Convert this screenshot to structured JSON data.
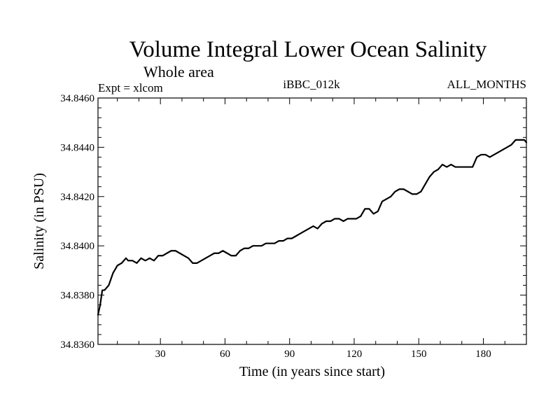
{
  "chart_data": {
    "type": "line",
    "title": "Volume Integral Lower Ocean Salinity",
    "subtitle": "Whole area",
    "annotations": {
      "left": "Expt = xlcom",
      "center": "iBBC_012k",
      "right": "ALL_MONTHS"
    },
    "xlabel": "Time (in years since start)",
    "ylabel": "Salinity (in PSU)",
    "xlim": [
      1,
      200
    ],
    "ylim": [
      34.836,
      34.846
    ],
    "x_ticks": [
      30,
      60,
      90,
      120,
      150,
      180
    ],
    "y_ticks": [
      34.836,
      34.838,
      34.84,
      34.842,
      34.844,
      34.846
    ],
    "y_tick_labels": [
      "34.8360",
      "34.8380",
      "34.8400",
      "34.8420",
      "34.8440",
      "34.8460"
    ],
    "series": [
      {
        "name": "Salinity",
        "color": "#000000",
        "x": [
          1,
          2,
          3,
          4,
          6,
          8,
          10,
          12,
          14,
          15,
          17,
          19,
          21,
          23,
          25,
          27,
          29,
          31,
          33,
          35,
          37,
          39,
          41,
          43,
          45,
          47,
          49,
          51,
          53,
          55,
          57,
          59,
          61,
          63,
          65,
          67,
          69,
          71,
          73,
          75,
          77,
          79,
          81,
          83,
          85,
          87,
          89,
          91,
          93,
          95,
          97,
          99,
          101,
          103,
          105,
          107,
          109,
          111,
          113,
          115,
          117,
          119,
          121,
          123,
          125,
          127,
          129,
          131,
          133,
          135,
          137,
          139,
          141,
          143,
          145,
          147,
          149,
          151,
          153,
          155,
          157,
          159,
          161,
          163,
          165,
          167,
          169,
          171,
          173,
          175,
          177,
          179,
          181,
          183,
          185,
          187,
          189,
          191,
          193,
          195,
          197,
          199,
          200
        ],
        "y": [
          34.8372,
          34.8376,
          34.8382,
          34.8382,
          34.8384,
          34.8389,
          34.8392,
          34.8393,
          34.8395,
          34.8394,
          34.8394,
          34.8393,
          34.8395,
          34.8394,
          34.8395,
          34.8394,
          34.8396,
          34.8396,
          34.8397,
          34.8398,
          34.8398,
          34.8397,
          34.8396,
          34.8395,
          34.8393,
          34.8393,
          34.8394,
          34.8395,
          34.8396,
          34.8397,
          34.8397,
          34.8398,
          34.8397,
          34.8396,
          34.8396,
          34.8398,
          34.8399,
          34.8399,
          34.84,
          34.84,
          34.84,
          34.8401,
          34.8401,
          34.8401,
          34.8402,
          34.8402,
          34.8403,
          34.8403,
          34.8404,
          34.8405,
          34.8406,
          34.8407,
          34.8408,
          34.8407,
          34.8409,
          34.841,
          34.841,
          34.8411,
          34.8411,
          34.841,
          34.8411,
          34.8411,
          34.8411,
          34.8412,
          34.8415,
          34.8415,
          34.8413,
          34.8414,
          34.8418,
          34.8419,
          34.842,
          34.8422,
          34.8423,
          34.8423,
          34.8422,
          34.8421,
          34.8421,
          34.8422,
          34.8425,
          34.8428,
          34.843,
          34.8431,
          34.8433,
          34.8432,
          34.8433,
          34.8432,
          34.8432,
          34.8432,
          34.8432,
          34.8432,
          34.8436,
          34.8437,
          34.8437,
          34.8436,
          34.8437,
          34.8438,
          34.8439,
          34.844,
          34.8441,
          34.8443,
          34.8443,
          34.8443,
          34.8442
        ]
      }
    ]
  }
}
